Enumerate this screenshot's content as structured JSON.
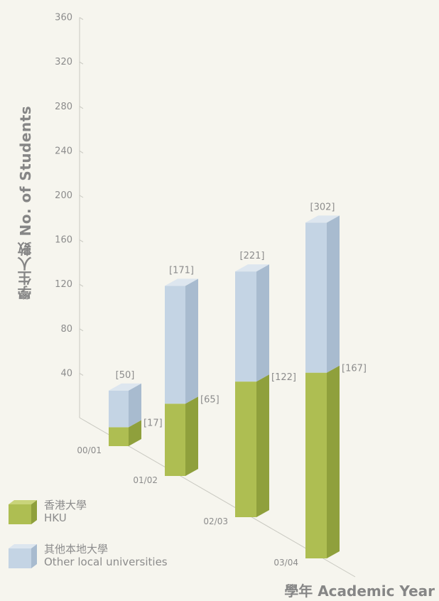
{
  "chart_data": {
    "type": "bar",
    "stacked": true,
    "categories": [
      "00/01",
      "01/02",
      "02/03",
      "03/04"
    ],
    "series": [
      {
        "name": "香港大學 HKU",
        "color": "#aebe52",
        "values": [
          17,
          65,
          122,
          167
        ]
      },
      {
        "name": "其他本地大學 Other local universities",
        "color": "#c4d4e4",
        "values": [
          33,
          106,
          99,
          135
        ]
      }
    ],
    "hku_labels": [
      "[17]",
      "[65]",
      "[122]",
      "[167]"
    ],
    "total_labels": [
      "[50]",
      "[171]",
      "[221]",
      "[302]"
    ],
    "yticks": [
      40,
      80,
      120,
      160,
      200,
      240,
      280,
      320,
      360
    ],
    "ylim": [
      0,
      360
    ],
    "ylabel": "學生人數 No. of Students",
    "xlabel": "學年 Academic Year",
    "legend_placement": "bottom-left"
  },
  "legend": [
    {
      "zh": "香港大學",
      "en": "HKU",
      "color": "#aebe52"
    },
    {
      "zh": "其他本地大學",
      "en": "Other local universities",
      "color": "#c4d4e4"
    }
  ]
}
